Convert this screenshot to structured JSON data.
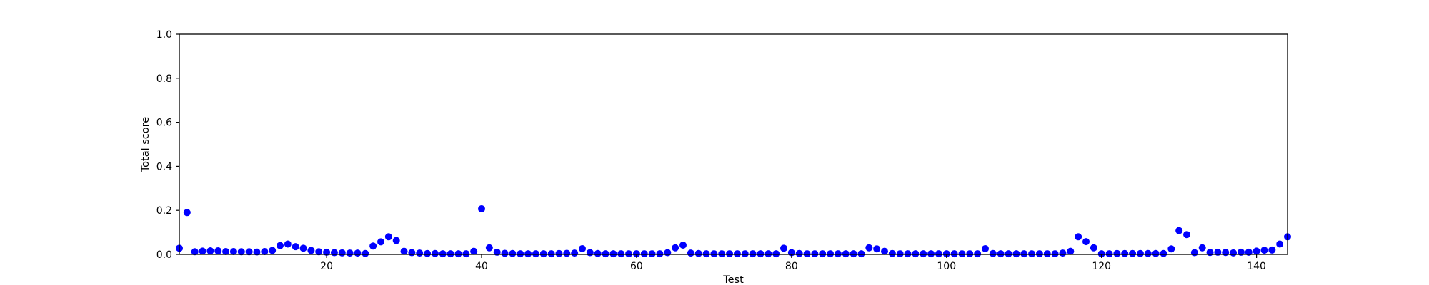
{
  "chart_data": {
    "type": "scatter",
    "xlabel": "Test",
    "ylabel": "Total score",
    "xlim": [
      1,
      144
    ],
    "ylim": [
      0.0,
      1.0
    ],
    "xticks": [
      20,
      40,
      60,
      80,
      100,
      120,
      140
    ],
    "yticks": [
      0.0,
      0.2,
      0.4,
      0.6,
      0.8,
      1.0
    ],
    "ytick_labels": [
      "0.0",
      "0.2",
      "0.4",
      "0.6",
      "0.8",
      "1.0"
    ],
    "grid": false,
    "legend": "none",
    "marker_color": "#0000ff",
    "series": [
      {
        "x": [
          1,
          2,
          3,
          4,
          5,
          6,
          7,
          8,
          9,
          10,
          11,
          12,
          13,
          14,
          15,
          16,
          17,
          18,
          19,
          20,
          21,
          22,
          23,
          24,
          25,
          26,
          27,
          28,
          29,
          30,
          31,
          32,
          33,
          34,
          35,
          36,
          37,
          38,
          39,
          40,
          41,
          42,
          43,
          44,
          45,
          46,
          47,
          48,
          49,
          50,
          51,
          52,
          53,
          54,
          55,
          56,
          57,
          58,
          59,
          60,
          61,
          62,
          63,
          64,
          65,
          66,
          67,
          68,
          69,
          70,
          71,
          72,
          73,
          74,
          75,
          76,
          77,
          78,
          79,
          80,
          81,
          82,
          83,
          84,
          85,
          86,
          87,
          88,
          89,
          90,
          91,
          92,
          93,
          94,
          95,
          96,
          97,
          98,
          99,
          100,
          101,
          102,
          103,
          104,
          105,
          106,
          107,
          108,
          109,
          110,
          111,
          112,
          113,
          114,
          115,
          116,
          117,
          118,
          119,
          120,
          121,
          122,
          123,
          124,
          125,
          126,
          127,
          128,
          129,
          130,
          131,
          132,
          133,
          134,
          135,
          136,
          137,
          138,
          139,
          140,
          141,
          142,
          143,
          144
        ],
        "y": [
          0.028,
          0.19,
          0.012,
          0.015,
          0.016,
          0.016,
          0.013,
          0.013,
          0.012,
          0.012,
          0.011,
          0.013,
          0.018,
          0.04,
          0.047,
          0.035,
          0.028,
          0.018,
          0.012,
          0.01,
          0.008,
          0.007,
          0.006,
          0.006,
          0.004,
          0.038,
          0.057,
          0.08,
          0.063,
          0.014,
          0.008,
          0.006,
          0.004,
          0.004,
          0.003,
          0.003,
          0.003,
          0.003,
          0.014,
          0.207,
          0.03,
          0.01,
          0.005,
          0.004,
          0.003,
          0.003,
          0.003,
          0.003,
          0.003,
          0.004,
          0.005,
          0.006,
          0.026,
          0.008,
          0.004,
          0.003,
          0.003,
          0.003,
          0.003,
          0.003,
          0.003,
          0.003,
          0.003,
          0.008,
          0.03,
          0.042,
          0.006,
          0.004,
          0.003,
          0.003,
          0.003,
          0.003,
          0.003,
          0.003,
          0.003,
          0.003,
          0.003,
          0.003,
          0.028,
          0.008,
          0.004,
          0.003,
          0.003,
          0.003,
          0.003,
          0.003,
          0.003,
          0.003,
          0.003,
          0.03,
          0.025,
          0.014,
          0.004,
          0.003,
          0.003,
          0.003,
          0.003,
          0.003,
          0.003,
          0.003,
          0.003,
          0.003,
          0.003,
          0.003,
          0.026,
          0.004,
          0.003,
          0.003,
          0.003,
          0.003,
          0.003,
          0.003,
          0.003,
          0.003,
          0.006,
          0.014,
          0.08,
          0.058,
          0.03,
          0.003,
          0.003,
          0.004,
          0.004,
          0.004,
          0.004,
          0.004,
          0.004,
          0.004,
          0.025,
          0.108,
          0.09,
          0.008,
          0.03,
          0.009,
          0.01,
          0.009,
          0.007,
          0.01,
          0.01,
          0.015,
          0.019,
          0.02,
          0.047,
          0.08
        ]
      }
    ]
  }
}
